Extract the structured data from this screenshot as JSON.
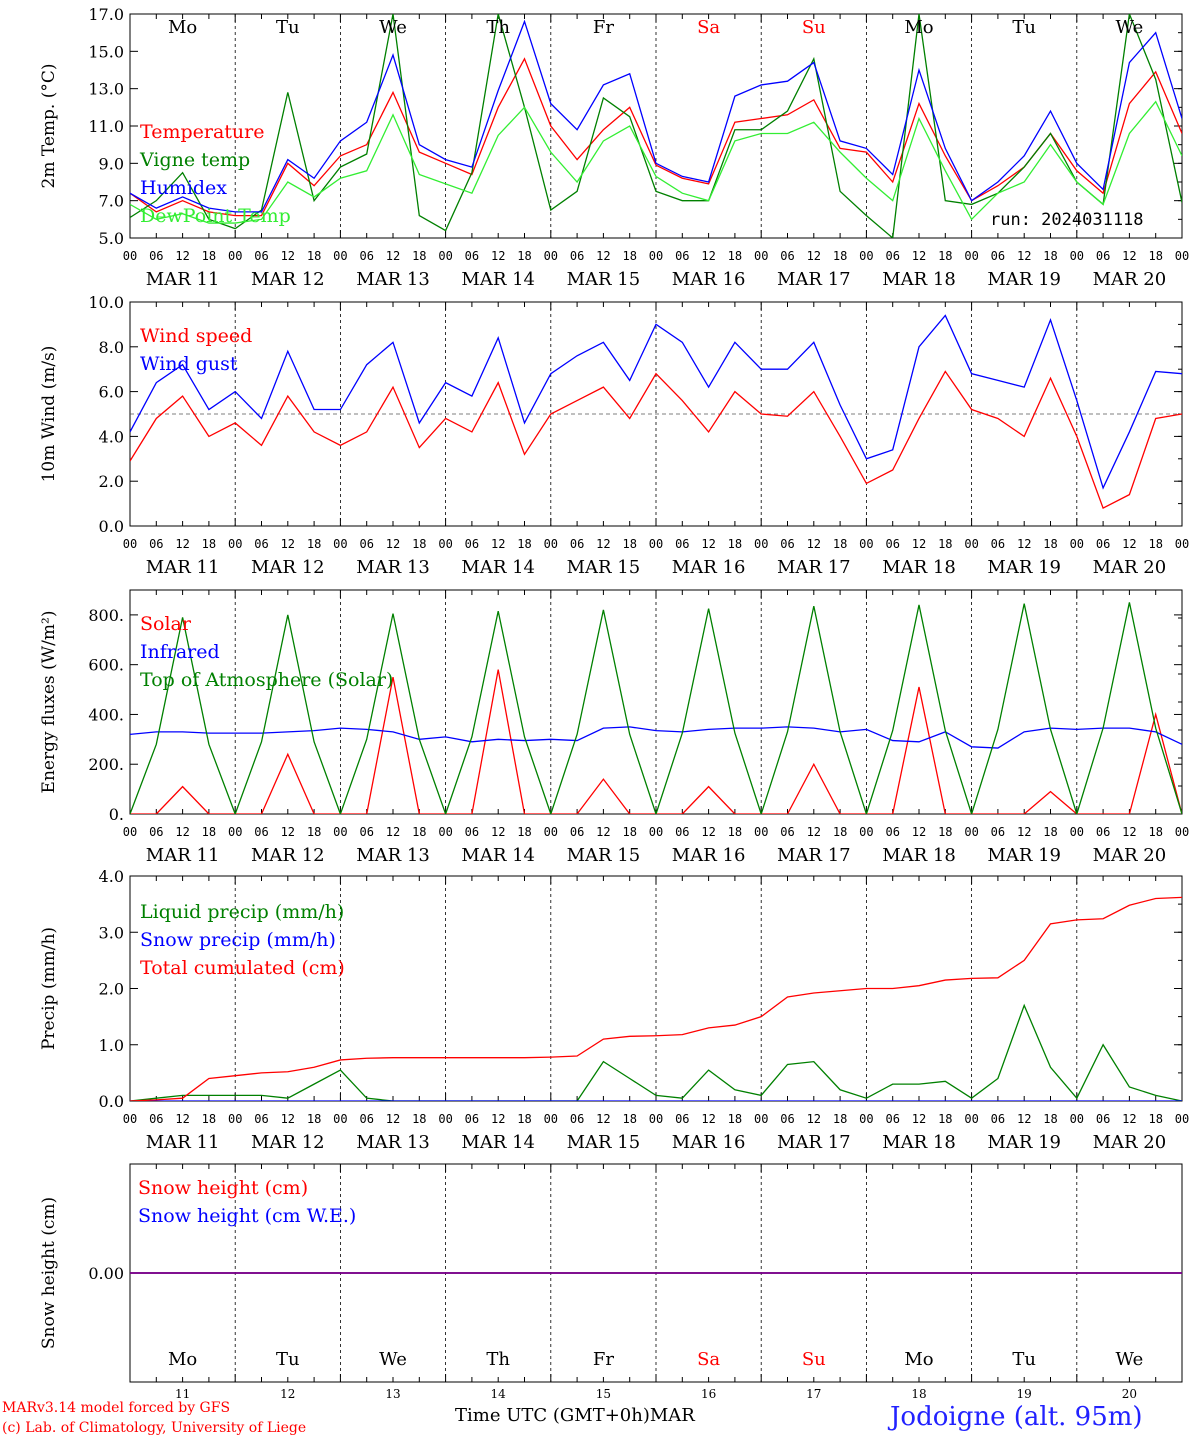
{
  "run_label": "run: 2024031118",
  "days_of_week": [
    "Mo",
    "Tu",
    "We",
    "Th",
    "Fr",
    "Sa",
    "Su",
    "Mo",
    "Tu",
    "We"
  ],
  "weekend_days": [
    false,
    false,
    false,
    false,
    false,
    true,
    true,
    false,
    false,
    false
  ],
  "date_labels": [
    "MAR 11",
    "MAR 12",
    "MAR 13",
    "MAR 14",
    "MAR 15",
    "MAR 16",
    "MAR 17",
    "MAR 18",
    "MAR 19",
    "MAR 20"
  ],
  "hour_ticks": [
    "00",
    "06",
    "12",
    "18"
  ],
  "hour_tick_last": "00",
  "bottom_day_numbers": [
    "11",
    "12",
    "13",
    "14",
    "15",
    "16",
    "17",
    "18",
    "19",
    "20"
  ],
  "xlabel": "Time UTC (GMT+0h)",
  "xlabel_month": "MAR",
  "credit_line1": "MARv3.14 model forced by GFS",
  "credit_line2": "(c) Lab. of Climatology, University of Liege",
  "location": "Jodoigne (alt. 95m)",
  "colors": {
    "red": "#ff0000",
    "blue": "#0000ff",
    "green": "#008000",
    "lightgreen": "#33ee33",
    "purple": "#800080",
    "location": "#2222ff"
  },
  "chart_data": [
    {
      "type": "line",
      "ylabel": "2m Temp. (°C)",
      "ylim": [
        5.0,
        17.0
      ],
      "yticks": [
        "5.0",
        "7.0",
        "9.0",
        "11.0",
        "13.0",
        "15.0",
        "17.0"
      ],
      "x_hours": [
        0,
        6,
        12,
        18,
        24,
        30,
        36,
        42,
        48,
        54,
        60,
        66,
        72,
        78,
        84,
        90,
        96,
        102,
        108,
        114,
        120,
        126,
        132,
        138,
        144,
        150,
        156,
        162,
        168,
        174,
        180,
        186,
        192,
        198,
        204,
        210,
        216,
        222,
        228,
        234,
        240
      ],
      "series": [
        {
          "name": "Temperature",
          "color": "red",
          "values": [
            7.4,
            6.4,
            7.0,
            6.4,
            6.2,
            6.2,
            9.0,
            7.8,
            9.4,
            10.0,
            12.8,
            9.6,
            9.0,
            8.4,
            12.0,
            14.6,
            11.0,
            9.2,
            10.8,
            12.0,
            8.9,
            8.2,
            7.9,
            11.2,
            11.4,
            11.6,
            12.4,
            9.8,
            9.6,
            8.0,
            12.2,
            9.4,
            7.0,
            7.8,
            8.8,
            10.6,
            8.6,
            7.4,
            12.2,
            13.9,
            10.6
          ]
        },
        {
          "name": "Vigne temp",
          "color": "green",
          "values": [
            6.1,
            7.0,
            8.5,
            6.0,
            5.5,
            6.5,
            12.8,
            7.0,
            8.8,
            9.5,
            17.0,
            6.2,
            5.4,
            8.5,
            17.0,
            12.0,
            6.5,
            7.5,
            12.5,
            11.5,
            7.5,
            7.0,
            7.0,
            10.8,
            10.8,
            11.8,
            14.6,
            7.5,
            6.2,
            5.0,
            17.0,
            7.0,
            6.8,
            7.4,
            8.8,
            10.6,
            8.0,
            6.8,
            17.0,
            13.5,
            6.9
          ]
        },
        {
          "name": "Humidex",
          "color": "blue",
          "values": [
            7.4,
            6.6,
            7.2,
            6.6,
            6.4,
            6.4,
            9.2,
            8.2,
            10.2,
            11.2,
            14.8,
            10.0,
            9.2,
            8.8,
            12.9,
            16.6,
            12.2,
            10.8,
            13.2,
            13.8,
            9.0,
            8.3,
            8.0,
            12.6,
            13.2,
            13.4,
            14.4,
            10.2,
            9.8,
            8.4,
            14.0,
            9.8,
            7.0,
            8.0,
            9.4,
            11.8,
            9.0,
            7.6,
            14.4,
            16.0,
            11.4
          ]
        },
        {
          "name": "DewPoint Temp",
          "color": "lightgreen",
          "values": [
            6.8,
            6.0,
            6.3,
            5.8,
            5.8,
            6.0,
            8.0,
            7.2,
            8.2,
            8.6,
            11.6,
            8.4,
            7.9,
            7.4,
            10.5,
            12.0,
            9.6,
            8.0,
            10.2,
            11.0,
            8.3,
            7.4,
            7.0,
            10.2,
            10.6,
            10.6,
            11.2,
            9.6,
            8.2,
            7.0,
            11.4,
            8.6,
            6.0,
            7.4,
            8.0,
            10.0,
            8.0,
            6.8,
            10.6,
            12.3,
            9.4
          ]
        }
      ],
      "title": ""
    },
    {
      "type": "line",
      "ylabel": "10m Wind (m/s)",
      "ylim": [
        0.0,
        10.0
      ],
      "yticks": [
        "0.0",
        "2.0",
        "4.0",
        "6.0",
        "8.0",
        "10.0"
      ],
      "reference_line": 5.0,
      "x_hours": [
        0,
        6,
        12,
        18,
        24,
        30,
        36,
        42,
        48,
        54,
        60,
        66,
        72,
        78,
        84,
        90,
        96,
        102,
        108,
        114,
        120,
        126,
        132,
        138,
        144,
        150,
        156,
        162,
        168,
        174,
        180,
        186,
        192,
        198,
        204,
        210,
        216,
        222,
        228,
        234,
        240
      ],
      "series": [
        {
          "name": "Wind speed",
          "color": "red",
          "values": [
            2.9,
            4.8,
            5.8,
            4.0,
            4.6,
            3.6,
            5.8,
            4.2,
            3.6,
            4.2,
            6.2,
            3.5,
            4.8,
            4.2,
            6.4,
            3.2,
            5.0,
            5.6,
            6.2,
            4.8,
            6.8,
            5.6,
            4.2,
            6.0,
            5.0,
            4.9,
            6.0,
            4.0,
            1.9,
            2.5,
            4.8,
            6.9,
            5.2,
            4.8,
            4.0,
            6.6,
            4.0,
            0.8,
            1.4,
            4.8,
            5.0
          ]
        },
        {
          "name": "Wind gust",
          "color": "blue",
          "values": [
            4.2,
            6.4,
            7.2,
            5.2,
            6.0,
            4.8,
            7.8,
            5.2,
            5.2,
            7.2,
            8.2,
            4.6,
            6.4,
            5.8,
            8.4,
            4.6,
            6.8,
            7.6,
            8.2,
            6.5,
            9.0,
            8.2,
            6.2,
            8.2,
            7.0,
            7.0,
            8.2,
            5.4,
            3.0,
            3.4,
            8.0,
            9.4,
            6.8,
            6.5,
            6.2,
            9.2,
            5.6,
            1.7,
            4.2,
            6.9,
            6.8
          ]
        }
      ],
      "title": ""
    },
    {
      "type": "line",
      "ylabel": "Energy fluxes (W/m²)",
      "ylim": [
        0,
        900
      ],
      "yticks": [
        "0.",
        "200.",
        "400.",
        "600.",
        "800."
      ],
      "x_hours": [
        0,
        6,
        12,
        18,
        24,
        30,
        36,
        42,
        48,
        54,
        60,
        66,
        72,
        78,
        84,
        90,
        96,
        102,
        108,
        114,
        120,
        126,
        132,
        138,
        144,
        150,
        156,
        162,
        168,
        174,
        180,
        186,
        192,
        198,
        204,
        210,
        216,
        222,
        228,
        234,
        240
      ],
      "series": [
        {
          "name": "Solar",
          "color": "red",
          "values": [
            0,
            0,
            110,
            0,
            0,
            0,
            240,
            0,
            0,
            0,
            550,
            0,
            0,
            0,
            580,
            0,
            0,
            0,
            140,
            0,
            0,
            0,
            110,
            0,
            0,
            0,
            200,
            0,
            0,
            0,
            510,
            0,
            0,
            0,
            0,
            90,
            0,
            0,
            0,
            400,
            0
          ]
        },
        {
          "name": "Infrared",
          "color": "blue",
          "values": [
            320,
            330,
            330,
            325,
            325,
            325,
            330,
            335,
            345,
            340,
            330,
            300,
            310,
            290,
            300,
            295,
            300,
            295,
            345,
            350,
            335,
            330,
            340,
            345,
            345,
            350,
            345,
            330,
            340,
            295,
            290,
            330,
            270,
            265,
            330,
            345,
            340,
            345,
            345,
            330,
            280
          ]
        },
        {
          "name": "Top of Atmosphere (Solar)",
          "color": "green",
          "values": [
            0,
            280,
            790,
            280,
            0,
            290,
            800,
            290,
            0,
            300,
            805,
            300,
            0,
            310,
            815,
            310,
            0,
            320,
            820,
            320,
            0,
            325,
            825,
            325,
            0,
            330,
            835,
            330,
            0,
            335,
            840,
            335,
            0,
            340,
            845,
            340,
            0,
            345,
            850,
            345,
            0
          ]
        }
      ],
      "title": ""
    },
    {
      "type": "line",
      "ylabel": "Precip (mm/h)",
      "ylim": [
        0.0,
        4.0
      ],
      "yticks": [
        "0.0",
        "1.0",
        "2.0",
        "3.0",
        "4.0"
      ],
      "x_hours": [
        0,
        6,
        12,
        18,
        24,
        30,
        36,
        42,
        48,
        54,
        60,
        66,
        72,
        78,
        84,
        90,
        96,
        102,
        108,
        114,
        120,
        126,
        132,
        138,
        144,
        150,
        156,
        162,
        168,
        174,
        180,
        186,
        192,
        198,
        204,
        210,
        216,
        222,
        228,
        234,
        240
      ],
      "series": [
        {
          "name": "Liquid precip (mm/h)",
          "color": "green",
          "values": [
            0,
            0.05,
            0.1,
            0.1,
            0.1,
            0.1,
            0.05,
            0.3,
            0.55,
            0.05,
            0,
            0,
            0,
            0,
            0,
            0,
            0,
            0,
            0.7,
            0.4,
            0.1,
            0.05,
            0.55,
            0.2,
            0.1,
            0.65,
            0.7,
            0.2,
            0.05,
            0.3,
            0.3,
            0.35,
            0.05,
            0.4,
            1.7,
            0.6,
            0.05,
            1.0,
            0.25,
            0.1,
            0
          ]
        },
        {
          "name": "Snow precip (mm/h)",
          "color": "blue",
          "values": [
            0,
            0,
            0,
            0,
            0,
            0,
            0,
            0,
            0,
            0,
            0,
            0,
            0,
            0,
            0,
            0,
            0,
            0,
            0,
            0,
            0,
            0,
            0,
            0,
            0,
            0,
            0,
            0,
            0,
            0,
            0,
            0,
            0,
            0,
            0,
            0,
            0,
            0,
            0,
            0,
            0
          ]
        },
        {
          "name": "Total cumulated (cm)",
          "color": "red",
          "values": [
            0,
            0.02,
            0.05,
            0.4,
            0.45,
            0.5,
            0.52,
            0.6,
            0.73,
            0.76,
            0.77,
            0.77,
            0.77,
            0.77,
            0.77,
            0.77,
            0.78,
            0.8,
            1.1,
            1.15,
            1.16,
            1.18,
            1.3,
            1.35,
            1.5,
            1.85,
            1.92,
            1.96,
            2.0,
            2.0,
            2.05,
            2.15,
            2.18,
            2.19,
            2.5,
            3.15,
            3.22,
            3.24,
            3.48,
            3.6,
            3.62
          ]
        }
      ],
      "title": ""
    },
    {
      "type": "line",
      "ylabel": "Snow height (cm)",
      "ylim": [
        -1.0,
        1.0
      ],
      "yticks": [
        "0.00"
      ],
      "x_hours": [
        0,
        240
      ],
      "series": [
        {
          "name": "Snow height (cm)",
          "color": "red",
          "values": [
            0.0,
            0.0
          ]
        },
        {
          "name": "Snow height (cm W.E.)",
          "color": "blue",
          "values": [
            0.0,
            0.0
          ]
        }
      ],
      "title": ""
    }
  ]
}
